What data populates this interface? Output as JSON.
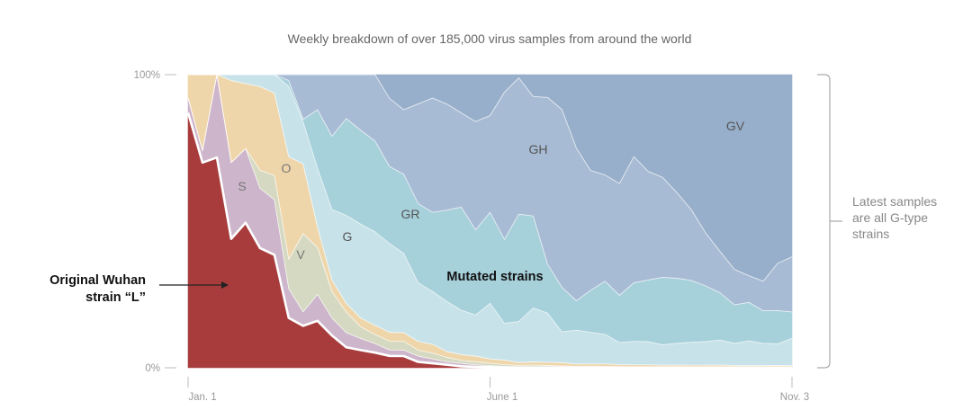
{
  "chart_data": {
    "type": "area",
    "stacking": "percent",
    "title": "Weekly breakdown of over 185,000 virus samples from around the world",
    "xlabel": "",
    "ylabel": "",
    "ylim": [
      0,
      100
    ],
    "y_ticks": [
      "100%",
      "0%"
    ],
    "x_ticks": [
      "Jan. 1",
      "June 1",
      "Nov. 3"
    ],
    "x_tick_weeks": [
      0,
      21,
      42
    ],
    "weeks": [
      0,
      1,
      2,
      3,
      4,
      5,
      6,
      7,
      8,
      9,
      10,
      11,
      12,
      13,
      14,
      15,
      16,
      17,
      18,
      19,
      20,
      21,
      22,
      23,
      24,
      25,
      26,
      27,
      28,
      29,
      30,
      31,
      32,
      33,
      34,
      35,
      36,
      37,
      38,
      39,
      40,
      41,
      42
    ],
    "series": [
      {
        "name": "L",
        "color": "#a83c3c",
        "values": [
          87,
          70,
          71,
          44,
          49,
          40,
          37,
          17,
          15,
          16,
          11,
          7,
          6,
          5,
          4,
          4,
          2,
          1.5,
          1,
          0.5,
          0.3,
          0.2,
          0.1,
          0,
          0,
          0,
          0,
          0,
          0,
          0,
          0,
          0,
          0,
          0,
          0,
          0,
          0,
          0,
          0,
          0,
          0,
          0,
          0
        ]
      },
      {
        "name": "S",
        "color": "#cdb5cb",
        "values": [
          5,
          4,
          28,
          26,
          25,
          20,
          18,
          10,
          5,
          9,
          6,
          5,
          4,
          3,
          2,
          2,
          2,
          1.5,
          1,
          1,
          0.7,
          0.5,
          0.4,
          0.3,
          0.3,
          0.3,
          0.3,
          0.2,
          0.2,
          0.2,
          0.1,
          0.1,
          0.1,
          0.1,
          0.1,
          0.1,
          0.1,
          0.1,
          0.1,
          0.1,
          0.1,
          0.1,
          0.1
        ]
      },
      {
        "name": "V",
        "color": "#d5d9c1",
        "values": [
          0,
          0,
          0,
          0,
          0,
          6,
          8,
          10,
          28,
          16,
          9,
          7,
          4,
          3,
          3,
          3,
          2,
          2,
          1.5,
          1,
          1,
          0.8,
          0.6,
          0.5,
          0.5,
          0.4,
          0.3,
          0.3,
          0.3,
          0.3,
          0.3,
          0.2,
          0.2,
          0.2,
          0.2,
          0.2,
          0.2,
          0.2,
          0.2,
          0.2,
          0.2,
          0.2,
          0.2
        ]
      },
      {
        "name": "O",
        "color": "#efd6aa",
        "values": [
          8,
          26,
          0,
          28,
          22,
          28,
          27,
          35,
          25,
          7,
          4,
          3,
          3,
          3,
          3,
          3,
          3,
          3,
          2,
          2,
          2,
          1.5,
          1.5,
          1,
          1,
          1,
          1,
          0.8,
          0.8,
          0.8,
          0.7,
          0.7,
          0.7,
          0.6,
          0.6,
          0.6,
          0.6,
          0.6,
          0.5,
          0.5,
          0.5,
          0.5,
          0.5
        ]
      },
      {
        "name": "G",
        "color": "#c7e2e9",
        "values": [
          0,
          0,
          0,
          2,
          3,
          4,
          6,
          24,
          15,
          20,
          24,
          30,
          32,
          31,
          30,
          27,
          20,
          18,
          17,
          15,
          14,
          19,
          12.5,
          14,
          16.5,
          15,
          9.7,
          11.5,
          10.5,
          10,
          7.5,
          8,
          7.9,
          6.9,
          7.4,
          7.8,
          8,
          8.5,
          7.5,
          8.3,
          7.5,
          7.8,
          9.2
        ]
      },
      {
        "name": "GR",
        "color": "#a6d0da",
        "values": [
          0,
          0,
          0,
          0,
          0,
          0,
          0,
          2,
          1,
          20,
          25,
          33,
          32,
          30,
          26,
          27,
          27,
          27,
          31,
          35,
          29,
          31,
          28.5,
          36.7,
          28.2,
          15,
          14,
          10,
          14,
          18,
          16,
          20,
          21,
          23,
          22,
          21,
          19,
          16,
          13,
          13,
          11,
          12,
          9
        ]
      },
      {
        "name": "GH",
        "color": "#a7bbd4",
        "values": [
          0,
          0,
          0,
          0,
          0,
          0,
          0,
          2,
          16,
          12,
          21,
          15,
          19,
          22,
          23,
          22,
          34,
          39,
          36,
          32,
          37,
          33,
          50,
          46.6,
          36.6,
          51,
          56,
          52,
          40,
          36,
          38,
          43,
          37,
          34,
          29,
          24,
          18,
          14,
          12,
          9,
          10,
          17,
          18.7
        ]
      },
      {
        "name": "GV",
        "color": "#97afca",
        "values": [
          0,
          0,
          0,
          0,
          0,
          0,
          0,
          0,
          0,
          0,
          0,
          0,
          0,
          0,
          8,
          12,
          10,
          8,
          10,
          13,
          16,
          14,
          6,
          1.1,
          6.7,
          7,
          11,
          25,
          32,
          34,
          37,
          28,
          33,
          35,
          40,
          46,
          54,
          60,
          66,
          68,
          70,
          68,
          62
        ]
      }
    ],
    "annotations": [
      {
        "text": "Original Wuhan",
        "points_to": "L"
      },
      {
        "text": "strain “L”",
        "points_to": "L"
      },
      {
        "text": "Mutated strains"
      },
      {
        "text": "Latest samples"
      },
      {
        "text": "are all G-type"
      },
      {
        "text": "strains"
      }
    ]
  }
}
